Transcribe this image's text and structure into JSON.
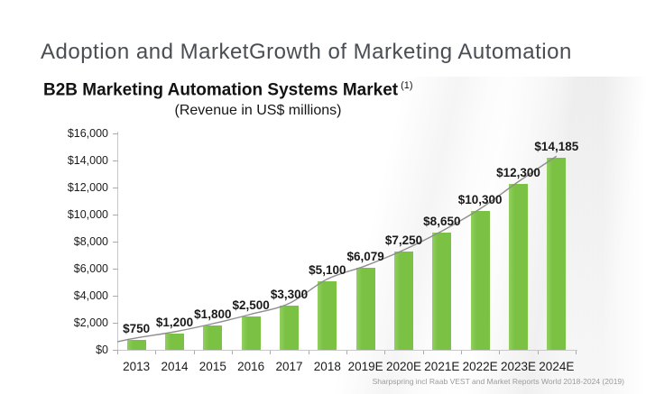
{
  "page": {
    "title": "Adoption and MarketGrowth of Marketing Automation"
  },
  "chart": {
    "title": "B2B Marketing Automation Systems Market",
    "title_superscript": "(1)",
    "subtitle": "(Revenue in US$ millions)",
    "source": "Sharpspring incl Raab VEST and Market Reports World 2018-2024 (2019)",
    "colors": {
      "bar": "#7BC143",
      "bar_highlight": "#92CF61",
      "trend_line": "#8E8E8E",
      "axis": "#C8C8C8",
      "tick": "#ABABAB",
      "text": "#1A1A1A"
    }
  },
  "chart_data": {
    "type": "bar",
    "title": "B2B Marketing Automation Systems Market (1)",
    "subtitle": "(Revenue in US$ millions)",
    "categories": [
      "2013",
      "2014",
      "2015",
      "2016",
      "2017",
      "2018",
      "2019E",
      "2020E",
      "2021E",
      "2022E",
      "2023E",
      "2024E"
    ],
    "values": [
      750,
      1200,
      1800,
      2500,
      3300,
      5100,
      6079,
      7250,
      8650,
      10300,
      12300,
      14185
    ],
    "data_labels": [
      "$750",
      "$1,200",
      "$1,800",
      "$2,500",
      "$3,300",
      "$5,100",
      "$6,079",
      "$7,250",
      "$8,650",
      "$10,300",
      "$12,300",
      "$14,185"
    ],
    "y_ticks": [
      {
        "label": "$16,000",
        "value": 16000
      },
      {
        "label": "$14,000",
        "value": 14000
      },
      {
        "label": "$12,000",
        "value": 12000
      },
      {
        "label": "$10,000",
        "value": 10000
      },
      {
        "label": "$8,000",
        "value": 8000
      },
      {
        "label": "$6,000",
        "value": 6000
      },
      {
        "label": "$4,000",
        "value": 4000
      },
      {
        "label": "$2,000",
        "value": 2000
      },
      {
        "label": "$0",
        "value": 0
      }
    ],
    "ylim": [
      0,
      16000
    ],
    "xlabel": "",
    "ylabel": "",
    "grid": false,
    "legend": false,
    "trendline": true,
    "source": "Sharpspring incl Raab VEST and Market Reports World 2018-2024 (2019)"
  }
}
